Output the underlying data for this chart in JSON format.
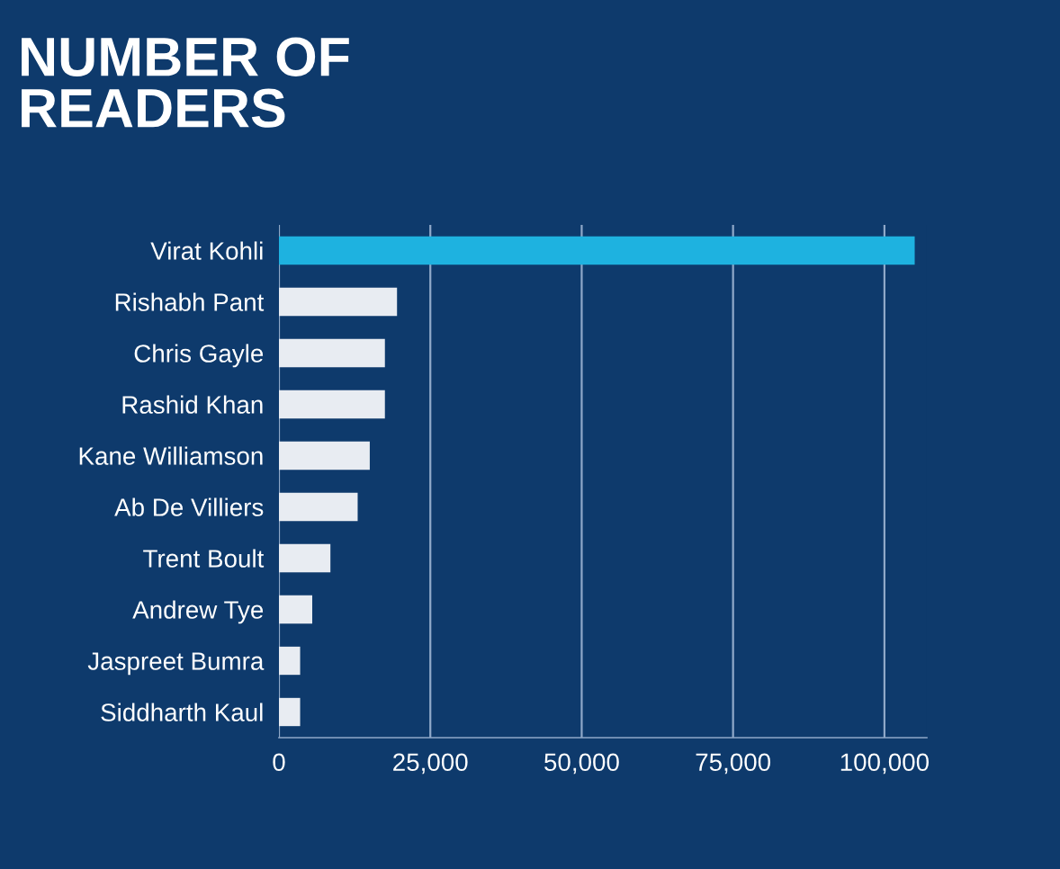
{
  "chart_data": {
    "type": "bar",
    "orientation": "horizontal",
    "title": "NUMBER OF\nREADERS",
    "categories": [
      "Virat Kohli",
      "Rishabh Pant",
      "Chris Gayle",
      "Rashid Khan",
      "Kane Williamson",
      "Ab De Villiers",
      "Trent Boult",
      "Andrew Tye",
      "Jaspreet Bumra",
      "Siddharth Kaul"
    ],
    "values": [
      105000,
      19500,
      17500,
      17500,
      15000,
      13000,
      8500,
      5500,
      3500,
      3500
    ],
    "colors": [
      "#1eb2e0",
      "#e8ecf2",
      "#e8ecf2",
      "#e8ecf2",
      "#e8ecf2",
      "#e8ecf2",
      "#e8ecf2",
      "#e8ecf2",
      "#e8ecf2",
      "#e8ecf2"
    ],
    "xlim": [
      0,
      107000
    ],
    "xticks": [
      0,
      {
        "value": 25000,
        "label": "25,000"
      },
      {
        "value": 50000,
        "label": "50,000"
      },
      {
        "value": 75000,
        "label": "75,000"
      },
      {
        "value": 100000,
        "label": "100,000"
      }
    ],
    "grid": "x"
  }
}
